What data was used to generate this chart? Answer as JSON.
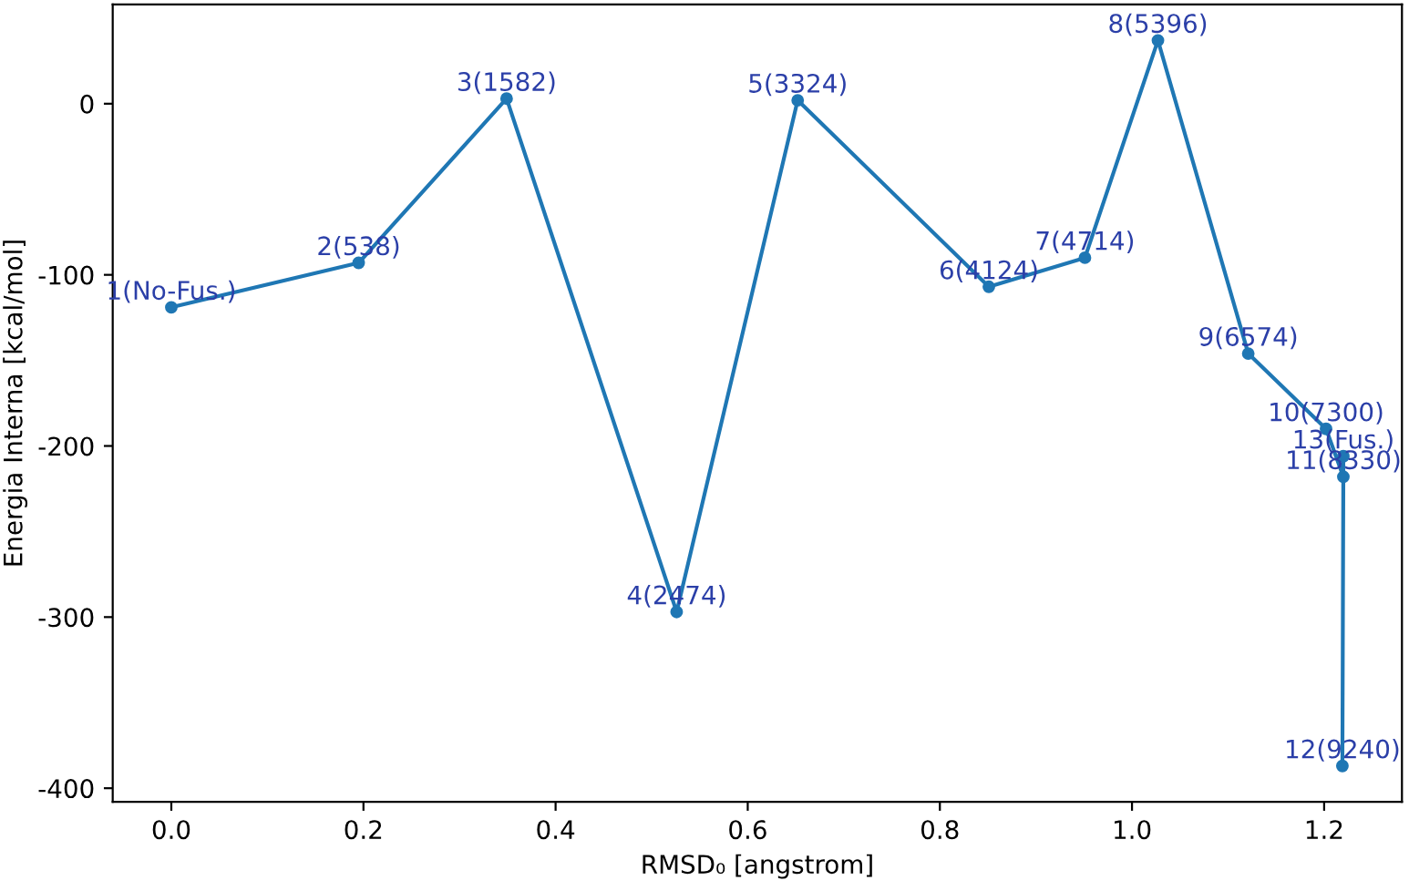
{
  "chart_data": {
    "type": "line",
    "xlabel": "RMSD₀ [angstrom]",
    "ylabel": "Energia Interna [kcal/mol]",
    "series": [
      {
        "color": "#1f77b4",
        "x": [
          0.0,
          0.195,
          0.349,
          0.526,
          0.652,
          0.851,
          0.951,
          1.027,
          1.121,
          1.202,
          1.22,
          1.219,
          1.22
        ],
        "values": [
          -119,
          -93,
          3,
          -297,
          2,
          -107,
          -90,
          37,
          -146,
          -190,
          -218,
          -387,
          -206
        ]
      }
    ],
    "marker": "circle",
    "line_style": "solid",
    "grid": false,
    "legend": false,
    "xlim": [
      -0.061,
      1.281
    ],
    "ylim": [
      -408,
      58
    ],
    "xticks": [
      {
        "value": 0,
        "label": "0.0"
      },
      0.2,
      0.4,
      0.6,
      0.8,
      {
        "value": 1,
        "label": "1.0"
      },
      1.2
    ],
    "yticks": [
      -400,
      -300,
      -200,
      -100,
      0
    ],
    "annotations": [
      {
        "text": "1(No-Fus.)",
        "x": 0.0,
        "y": -119
      },
      {
        "text": "2(538)",
        "x": 0.195,
        "y": -93
      },
      {
        "text": "3(1582)",
        "x": 0.349,
        "y": 3
      },
      {
        "text": "4(2474)",
        "x": 0.526,
        "y": -297
      },
      {
        "text": "5(3324)",
        "x": 0.652,
        "y": 2
      },
      {
        "text": "6(4124)",
        "x": 0.851,
        "y": -107
      },
      {
        "text": "7(4714)",
        "x": 0.951,
        "y": -90
      },
      {
        "text": "8(5396)",
        "x": 1.027,
        "y": 37
      },
      {
        "text": "9(6574)",
        "x": 1.121,
        "y": -146
      },
      {
        "text": "10(7300)",
        "x": 1.202,
        "y": -190
      },
      {
        "text": "11(8330)",
        "x": 1.22,
        "y": -218
      },
      {
        "text": "12(9240)",
        "x": 1.219,
        "y": -387
      },
      {
        "text": "13(Fus.)",
        "x": 1.22,
        "y": -206
      }
    ]
  }
}
